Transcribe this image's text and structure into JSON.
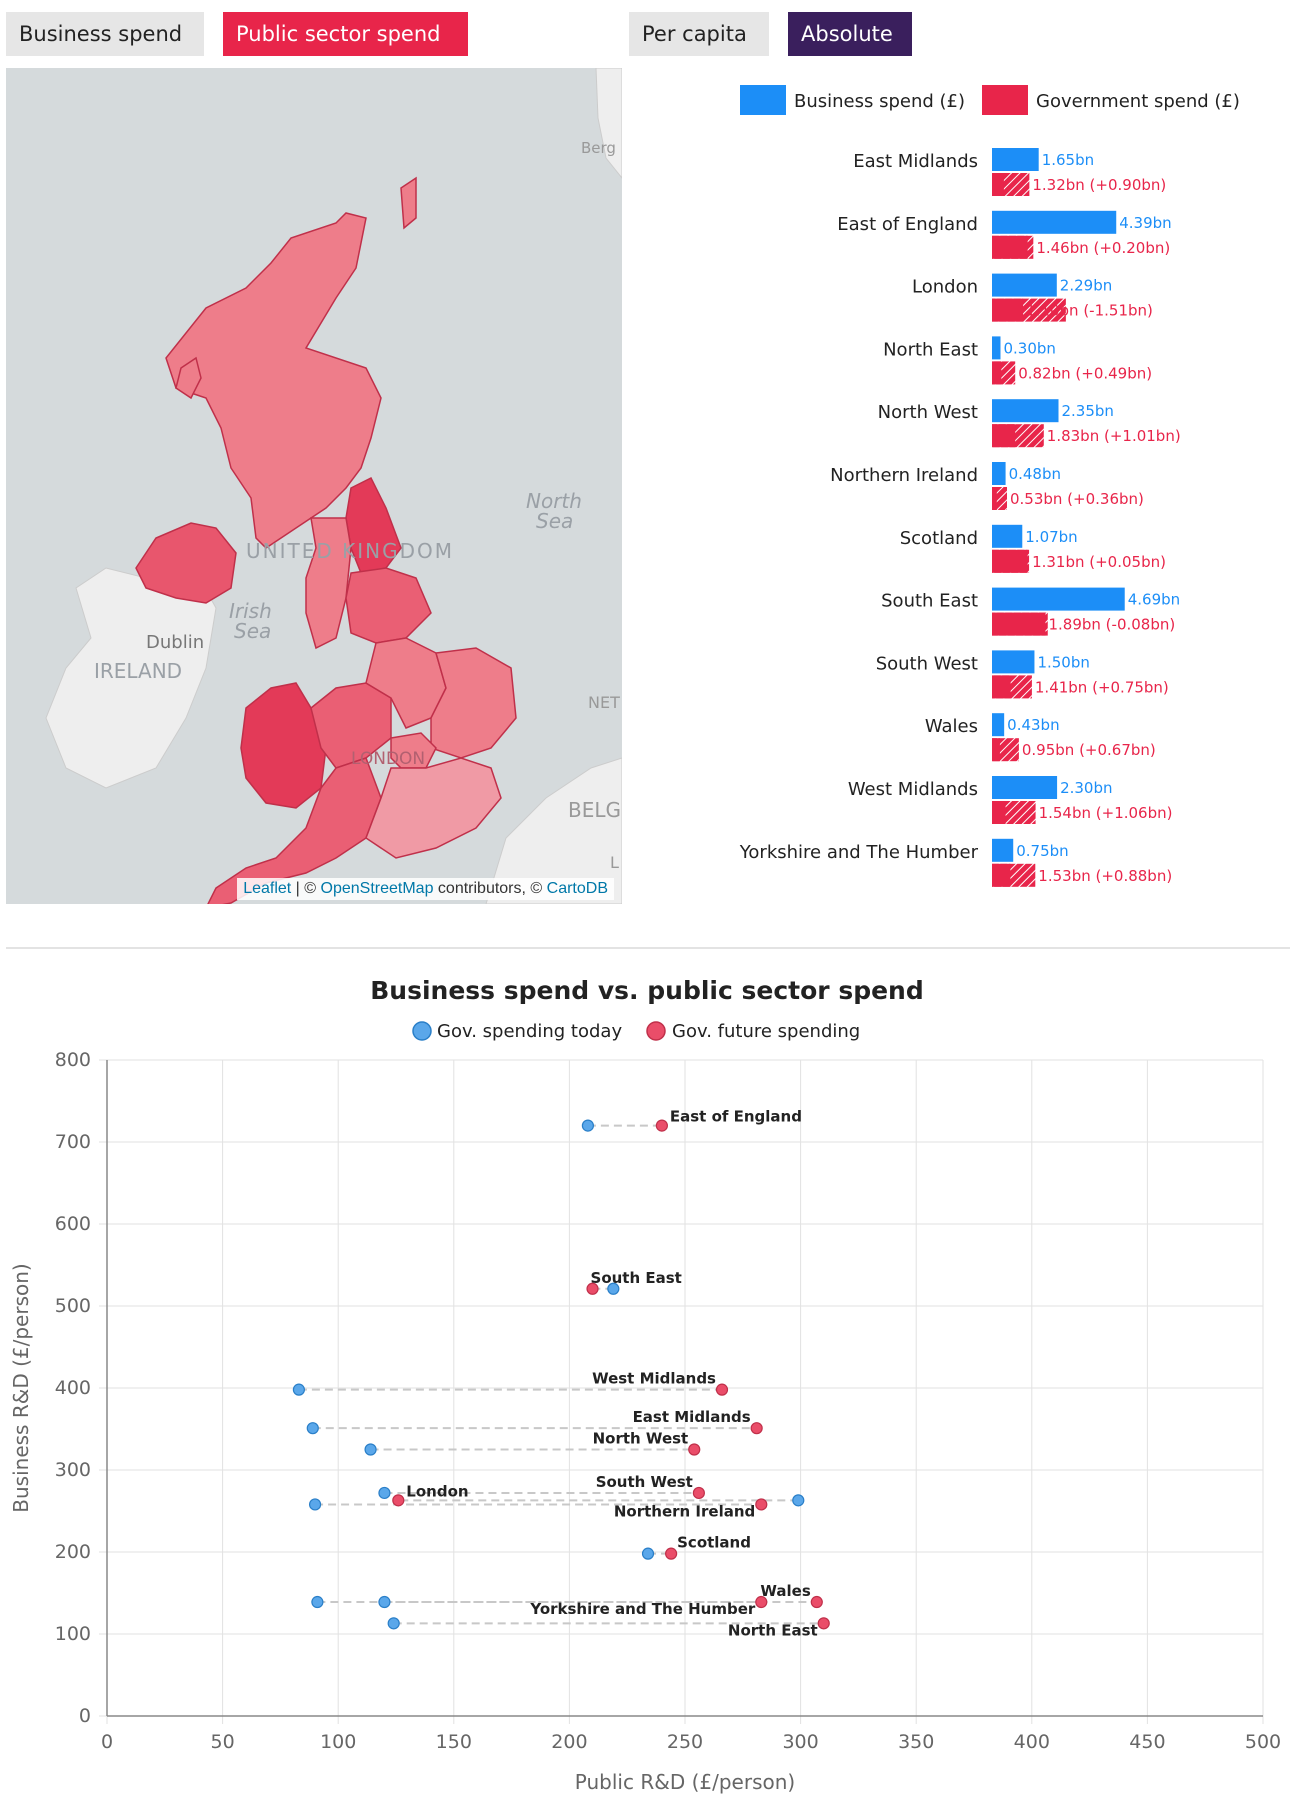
{
  "controls": {
    "metric_buttons": [
      "Business spend",
      "Public sector spend"
    ],
    "scale_buttons": [
      "Per capita",
      "Absolute"
    ],
    "active_metric": "Public sector spend",
    "active_scale": "Absolute"
  },
  "map": {
    "labels": {
      "country": "UNITED KINGDOM",
      "sea1_line1": "North",
      "sea1_line2": "Sea",
      "sea2_line1": "Irish",
      "sea2_line2": "Sea",
      "city": "Dublin",
      "ireland": "IRELAND",
      "london": "LONDON",
      "berg": "Berg",
      "net": "NET",
      "belg": "BELG",
      "l": "L"
    },
    "attribution": {
      "leaflet": "Leaflet",
      "sep1": " | © ",
      "osm": "OpenStreetMap",
      "mid": " contributors, © ",
      "carto": "CartoDB"
    },
    "fill_color": "#e8566d"
  },
  "colors": {
    "business": "#1c8ef7",
    "government": "#e8254a",
    "today": "#5aa7ea",
    "future": "#ea4d69",
    "active_public": "#e8254a",
    "active_absolute": "#3a1f5d"
  },
  "chart_data": [
    {
      "type": "bar",
      "legend": [
        "Business spend (£)",
        "Government spend (£)"
      ],
      "categories": [
        "East Midlands",
        "East of England",
        "London",
        "North East",
        "North West",
        "Northern Ireland",
        "Scotland",
        "South East",
        "South West",
        "Wales",
        "West Midlands",
        "Yorkshire and The Humber"
      ],
      "series": [
        {
          "name": "Business spend (£)",
          "values": [
            1.65,
            4.39,
            2.29,
            0.3,
            2.35,
            0.48,
            1.07,
            4.69,
            1.5,
            0.43,
            2.3,
            0.75
          ]
        },
        {
          "name": "Government spend (£)",
          "values": [
            1.32,
            1.46,
            1.1,
            0.82,
            1.83,
            0.53,
            1.31,
            1.89,
            1.41,
            0.95,
            1.54,
            1.53
          ]
        }
      ],
      "changes": [
        0.9,
        0.2,
        -1.51,
        0.49,
        1.01,
        0.36,
        0.05,
        -0.08,
        0.75,
        0.67,
        1.06,
        0.88
      ],
      "value_labels_business": [
        "1.65bn",
        "4.39bn",
        "2.29bn",
        "0.30bn",
        "2.35bn",
        "0.48bn",
        "1.07bn",
        "4.69bn",
        "1.50bn",
        "0.43bn",
        "2.30bn",
        "0.75bn"
      ],
      "value_labels_government": [
        "1.32bn (+0.90bn)",
        "1.46bn (+0.20bn)",
        "1.10bn (-1.51bn)",
        "0.82bn (+0.49bn)",
        "1.83bn (+1.01bn)",
        "0.53bn (+0.36bn)",
        "1.31bn (+0.05bn)",
        "1.89bn (-0.08bn)",
        "1.41bn (+0.75bn)",
        "0.95bn (+0.67bn)",
        "1.54bn (+1.06bn)",
        "1.53bn (+0.88bn)"
      ]
    },
    {
      "type": "scatter",
      "title": "Business spend vs. public sector spend",
      "legend": [
        "Gov. spending today",
        "Gov. future spending"
      ],
      "xlabel": "Public R&D (£/person)",
      "ylabel": "Business R&D (£/person)",
      "xlim": [
        0,
        500
      ],
      "ylim": [
        0,
        800
      ],
      "xticks": [
        0,
        50,
        100,
        150,
        200,
        250,
        300,
        350,
        400,
        450,
        500
      ],
      "yticks": [
        0,
        100,
        200,
        300,
        400,
        500,
        600,
        700,
        800
      ],
      "grid": true,
      "points": [
        {
          "label": "East of England",
          "y": 720,
          "today": 208,
          "future": 240
        },
        {
          "label": "South East",
          "y": 521,
          "today": 219,
          "future": 210
        },
        {
          "label": "West Midlands",
          "y": 398,
          "today": 83,
          "future": 266
        },
        {
          "label": "East Midlands",
          "y": 351,
          "today": 89,
          "future": 281
        },
        {
          "label": "North West",
          "y": 325,
          "today": 114,
          "future": 254
        },
        {
          "label": "South West",
          "y": 272,
          "today": 120,
          "future": 256
        },
        {
          "label": "London",
          "y": 263,
          "today": 299,
          "future": 126
        },
        {
          "label": "Northern Ireland",
          "y": 258,
          "today": 90,
          "future": 283
        },
        {
          "label": "Scotland",
          "y": 198,
          "today": 234,
          "future": 244
        },
        {
          "label": "Wales",
          "y": 139,
          "today": 91,
          "future": 307
        },
        {
          "label": "Yorkshire and The Humber",
          "y": 139,
          "today": 120,
          "future": 283
        },
        {
          "label": "North East",
          "y": 113,
          "today": 124,
          "future": 310
        }
      ]
    }
  ]
}
